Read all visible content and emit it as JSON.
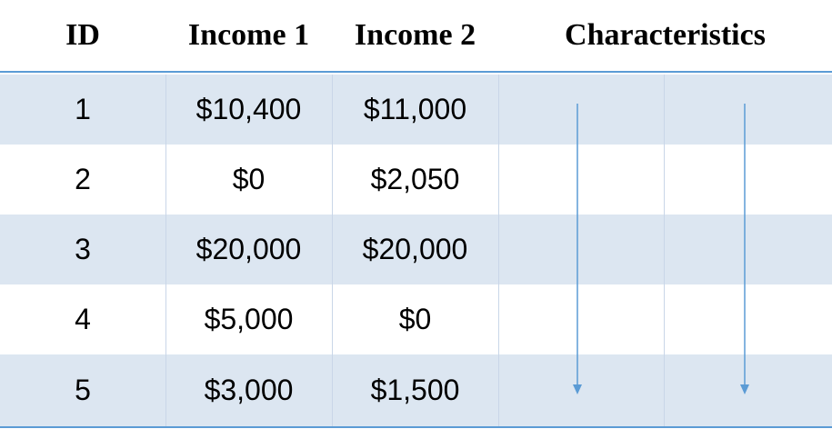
{
  "headers": {
    "id": "ID",
    "income1": "Income 1",
    "income2": "Income 2",
    "characteristics": "Characteristics"
  },
  "rows": [
    {
      "id": "1",
      "income1": "$10,400",
      "income2": "$11,000"
    },
    {
      "id": "2",
      "income1": "$0",
      "income2": "$2,050"
    },
    {
      "id": "3",
      "income1": "$20,000",
      "income2": "$20,000"
    },
    {
      "id": "4",
      "income1": "$5,000",
      "income2": "$0"
    },
    {
      "id": "5",
      "income1": "$3,000",
      "income2": "$1,500"
    }
  ],
  "colors": {
    "header_rule": "#5b9bd5",
    "row_shade": "#dce6f1",
    "arrow": "#5b9bd5"
  },
  "icons": [
    "down-arrow-icon",
    "down-arrow-icon"
  ]
}
